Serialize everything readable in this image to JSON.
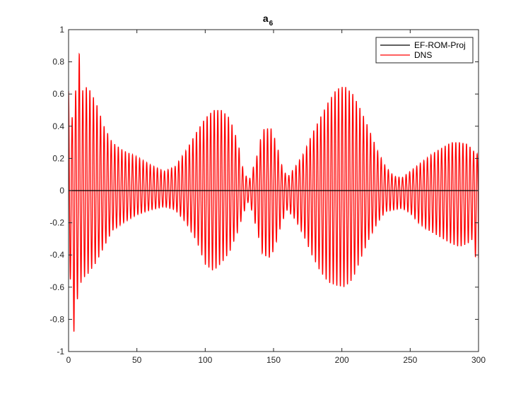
{
  "chart_data": {
    "type": "line",
    "title": "a",
    "title_subscript": "6",
    "xlabel": "",
    "ylabel": "",
    "xlim": [
      0,
      300
    ],
    "ylim": [
      -1,
      1
    ],
    "x_ticks": [
      0,
      50,
      100,
      150,
      200,
      250,
      300
    ],
    "y_ticks": [
      -1,
      -0.8,
      -0.6,
      -0.4,
      -0.2,
      0,
      0.2,
      0.4,
      0.6,
      0.8,
      1
    ],
    "x_tick_labels": [
      "0",
      "50",
      "100",
      "150",
      "200",
      "250",
      "300"
    ],
    "y_tick_labels": [
      "-1",
      "-0.8",
      "-0.6",
      "-0.4",
      "-0.2",
      "0",
      "0.2",
      "0.4",
      "0.6",
      "0.8",
      "1"
    ],
    "grid": false,
    "legend_position": "top-right",
    "oscillation_period": 2.6,
    "series": [
      {
        "name": "EF-ROM-Proj",
        "color": "#000000",
        "x": [
          0,
          300
        ],
        "y": [
          0,
          0
        ]
      },
      {
        "name": "DNS",
        "color": "#ff0000",
        "envelope": {
          "x": [
            0,
            2,
            4,
            6,
            8,
            10,
            14,
            20,
            26,
            32,
            40,
            50,
            60,
            70,
            78,
            86,
            94,
            100,
            106,
            112,
            118,
            124,
            128,
            132,
            138,
            142,
            148,
            152,
            156,
            160,
            166,
            172,
            178,
            184,
            190,
            196,
            202,
            208,
            214,
            220,
            226,
            232,
            238,
            244,
            250,
            256,
            262,
            268,
            274,
            280,
            286,
            292,
            296,
            300
          ],
          "upper": [
            0.62,
            0.4,
            0.58,
            0.65,
            0.87,
            0.62,
            0.65,
            0.55,
            0.4,
            0.3,
            0.25,
            0.21,
            0.16,
            0.12,
            0.15,
            0.25,
            0.37,
            0.45,
            0.5,
            0.5,
            0.45,
            0.3,
            0.12,
            0.06,
            0.22,
            0.38,
            0.39,
            0.3,
            0.16,
            0.08,
            0.15,
            0.23,
            0.35,
            0.45,
            0.55,
            0.63,
            0.65,
            0.6,
            0.5,
            0.38,
            0.25,
            0.15,
            0.09,
            0.08,
            0.12,
            0.16,
            0.2,
            0.24,
            0.27,
            0.3,
            0.3,
            0.29,
            0.25,
            0.22
          ],
          "lower": [
            -0.5,
            -0.58,
            -0.89,
            -0.7,
            -0.6,
            -0.55,
            -0.52,
            -0.45,
            -0.35,
            -0.25,
            -0.2,
            -0.15,
            -0.12,
            -0.1,
            -0.12,
            -0.2,
            -0.32,
            -0.46,
            -0.5,
            -0.45,
            -0.38,
            -0.25,
            -0.14,
            -0.06,
            -0.25,
            -0.4,
            -0.42,
            -0.32,
            -0.2,
            -0.12,
            -0.18,
            -0.28,
            -0.4,
            -0.5,
            -0.57,
            -0.59,
            -0.6,
            -0.55,
            -0.42,
            -0.3,
            -0.2,
            -0.13,
            -0.12,
            -0.11,
            -0.14,
            -0.2,
            -0.24,
            -0.27,
            -0.3,
            -0.33,
            -0.35,
            -0.33,
            -0.3,
            -0.56
          ]
        }
      }
    ]
  }
}
